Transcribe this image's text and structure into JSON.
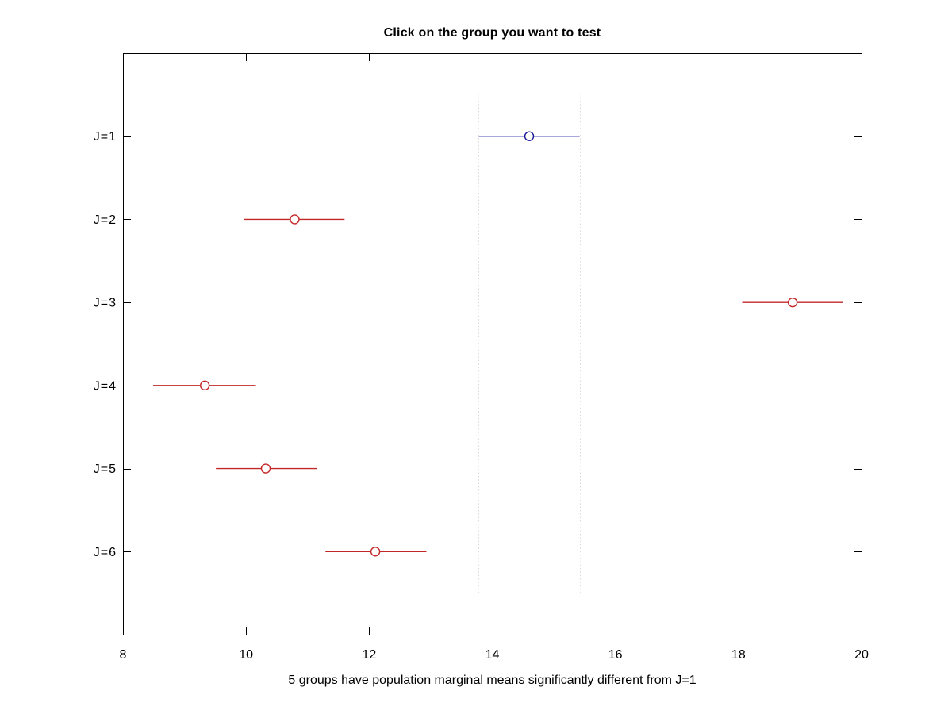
{
  "chart_data": {
    "type": "scatter",
    "subtype": "multcompare-interval-plot",
    "title": "Click on the group you want to test",
    "xlabel": "5 groups have population marginal means significantly different from J=1",
    "ylabel": "",
    "xlim": [
      8,
      20
    ],
    "ylim": [
      0,
      7
    ],
    "x_ticks": [
      8,
      10,
      12,
      14,
      16,
      18,
      20
    ],
    "grid": "off",
    "legend": "none",
    "marker": "open-circle",
    "groups": [
      {
        "label": "J=1",
        "y": 6,
        "center": 14.6,
        "ci": [
          13.78,
          15.42
        ],
        "status": "selected"
      },
      {
        "label": "J=2",
        "y": 5,
        "center": 10.79,
        "ci": [
          9.97,
          11.6
        ],
        "status": "different"
      },
      {
        "label": "J=3",
        "y": 4,
        "center": 18.88,
        "ci": [
          18.06,
          19.7
        ],
        "status": "different"
      },
      {
        "label": "J=4",
        "y": 3,
        "center": 9.33,
        "ci": [
          8.49,
          10.16
        ],
        "status": "different"
      },
      {
        "label": "J=5",
        "y": 2,
        "center": 10.32,
        "ci": [
          9.51,
          11.15
        ],
        "status": "different"
      },
      {
        "label": "J=6",
        "y": 1,
        "center": 12.1,
        "ci": [
          11.29,
          12.93
        ],
        "status": "different"
      }
    ],
    "reference_lines": {
      "x": [
        13.78,
        15.42
      ],
      "y_span": [
        0.5,
        6.5
      ],
      "color": "#d9d9d9",
      "style": "dotted"
    },
    "colors": {
      "selected": "#191996",
      "different": "#c32828",
      "axis": "#000000",
      "background": "#ffffff"
    }
  }
}
